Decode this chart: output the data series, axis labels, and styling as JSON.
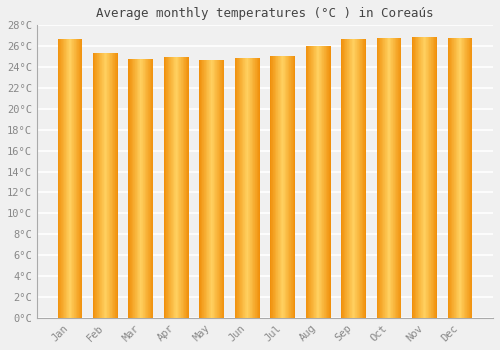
{
  "title": "Average monthly temperatures (°C ) in Coreaús",
  "months": [
    "Jan",
    "Feb",
    "Mar",
    "Apr",
    "May",
    "Jun",
    "Jul",
    "Aug",
    "Sep",
    "Oct",
    "Nov",
    "Dec"
  ],
  "values": [
    26.7,
    25.3,
    24.8,
    25.0,
    24.7,
    24.9,
    25.1,
    26.0,
    26.7,
    26.8,
    26.9,
    26.8
  ],
  "bar_color_center": "#FFD060",
  "bar_color_edge": "#F0900A",
  "background_color": "#F0F0F0",
  "plot_bg_color": "#F0F0F0",
  "grid_color": "#FFFFFF",
  "spine_color": "#AAAAAA",
  "ylim": [
    0,
    28
  ],
  "ytick_step": 2,
  "title_fontsize": 9,
  "tick_fontsize": 7.5,
  "font_family": "monospace"
}
